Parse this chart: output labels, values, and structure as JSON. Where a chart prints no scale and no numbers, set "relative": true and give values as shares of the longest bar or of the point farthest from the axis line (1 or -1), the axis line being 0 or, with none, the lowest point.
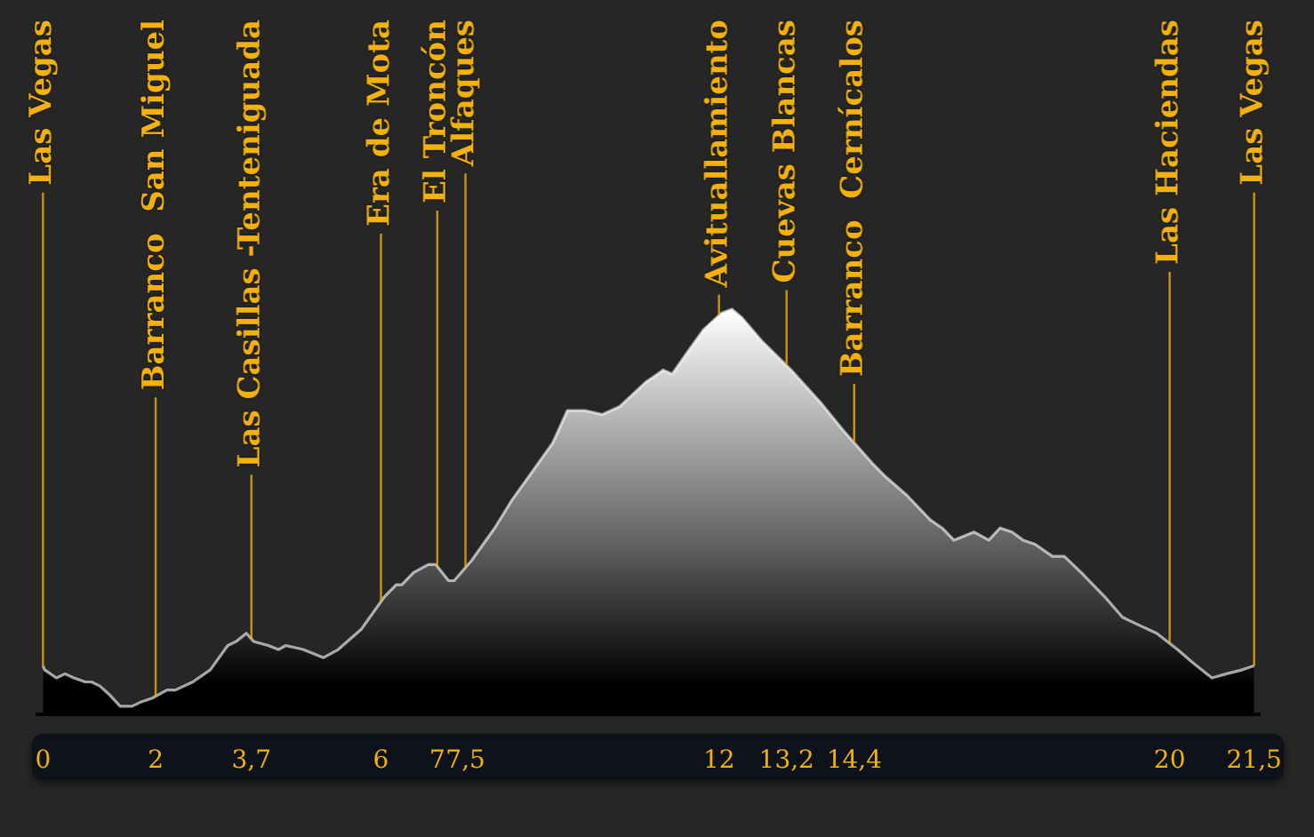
{
  "chart_data": {
    "type": "area",
    "relative": true,
    "x": [
      0,
      0.03,
      0.24,
      0.39,
      0.55,
      0.75,
      0.86,
      1.01,
      1.17,
      1.37,
      1.58,
      1.73,
      1.94,
      2.2,
      2.35,
      2.66,
      2.97,
      3.28,
      3.43,
      3.61,
      3.74,
      4,
      4.18,
      4.31,
      4.62,
      4.98,
      5.24,
      5.65,
      6.06,
      6.27,
      6.37,
      6.58,
      6.84,
      6.97,
      7.2,
      7.3,
      7.61,
      8.02,
      8.33,
      8.64,
      9.05,
      9.31,
      9.62,
      9.93,
      10.24,
      10.7,
      10.91,
      11.01,
      11.17,
      11.42,
      11.73,
      12.04,
      12.23,
      12.4,
      12.77,
      13.28,
      13.8,
      14.21,
      14.72,
      14.93,
      15.34,
      15.75,
      15.96,
      16.17,
      16.53,
      16.79,
      16.99,
      17.2,
      17.4,
      17.61,
      17.92,
      18.13,
      18.43,
      18.85,
      19.16,
      19.46,
      19.77,
      20.14,
      20.39,
      20.75,
      21.01,
      21.29,
      21.5
    ],
    "values": [
      0.12,
      0.11,
      0.09,
      0.1,
      0.09,
      0.08,
      0.08,
      0.07,
      0.05,
      0.02,
      0.02,
      0.03,
      0.04,
      0.06,
      0.06,
      0.08,
      0.11,
      0.17,
      0.18,
      0.2,
      0.18,
      0.17,
      0.16,
      0.17,
      0.16,
      0.14,
      0.16,
      0.21,
      0.29,
      0.32,
      0.32,
      0.35,
      0.37,
      0.37,
      0.33,
      0.33,
      0.38,
      0.46,
      0.53,
      0.59,
      0.67,
      0.75,
      0.75,
      0.74,
      0.76,
      0.82,
      0.84,
      0.85,
      0.84,
      0.89,
      0.95,
      0.99,
      1,
      0.98,
      0.92,
      0.85,
      0.77,
      0.7,
      0.62,
      0.59,
      0.54,
      0.48,
      0.46,
      0.43,
      0.45,
      0.43,
      0.46,
      0.45,
      0.43,
      0.42,
      0.39,
      0.39,
      0.35,
      0.29,
      0.24,
      0.22,
      0.2,
      0.16,
      0.13,
      0.09,
      0.1,
      0.11,
      0.12
    ],
    "color": "#ffffff",
    "xlim": [
      -0.1,
      21.6
    ],
    "xticks": [
      0,
      2,
      {
        "value": 3.7,
        "label": "3,7"
      },
      6,
      7,
      {
        "value": 7.5,
        "label": "7,5"
      },
      12,
      {
        "value": 13.2,
        "label": "13,2"
      },
      {
        "value": 14.4,
        "label": "14,4"
      },
      20,
      {
        "value": 21.5,
        "label": "21,5"
      }
    ],
    "ref_lines": [
      {
        "axis": "x",
        "value": 0,
        "label": "Las Vegas",
        "color": "#f2b10c"
      },
      {
        "axis": "x",
        "value": 2,
        "label": "Barranco  San Miguel",
        "color": "#f2b10c"
      },
      {
        "axis": "x",
        "value": 3.7,
        "label": "Las Casillas -Tenteniguada",
        "color": "#f2b10c"
      },
      {
        "axis": "x",
        "value": 6,
        "label": "Era de Mota",
        "color": "#f2b10c"
      },
      {
        "axis": "x",
        "value": 7,
        "label": "El Troncón",
        "color": "#f2b10c"
      },
      {
        "axis": "x",
        "value": 7.5,
        "label": "Alfaques",
        "color": "#f2b10c"
      },
      {
        "axis": "x",
        "value": 12,
        "label": "Avituallamiento",
        "color": "#f2b10c"
      },
      {
        "axis": "x",
        "value": 13.2,
        "label": "Cuevas Blancas",
        "color": "#f2b10c"
      },
      {
        "axis": "x",
        "value": 14.4,
        "label": "Barranco  Cernícalos",
        "color": "#f2b10c"
      },
      {
        "axis": "x",
        "value": 20,
        "label": "Las Haciendas",
        "color": "#f2b10c"
      },
      {
        "axis": "x",
        "value": 21.5,
        "label": "Las Vegas",
        "color": "#f2b10c"
      }
    ],
    "grid": false,
    "legend": false
  }
}
